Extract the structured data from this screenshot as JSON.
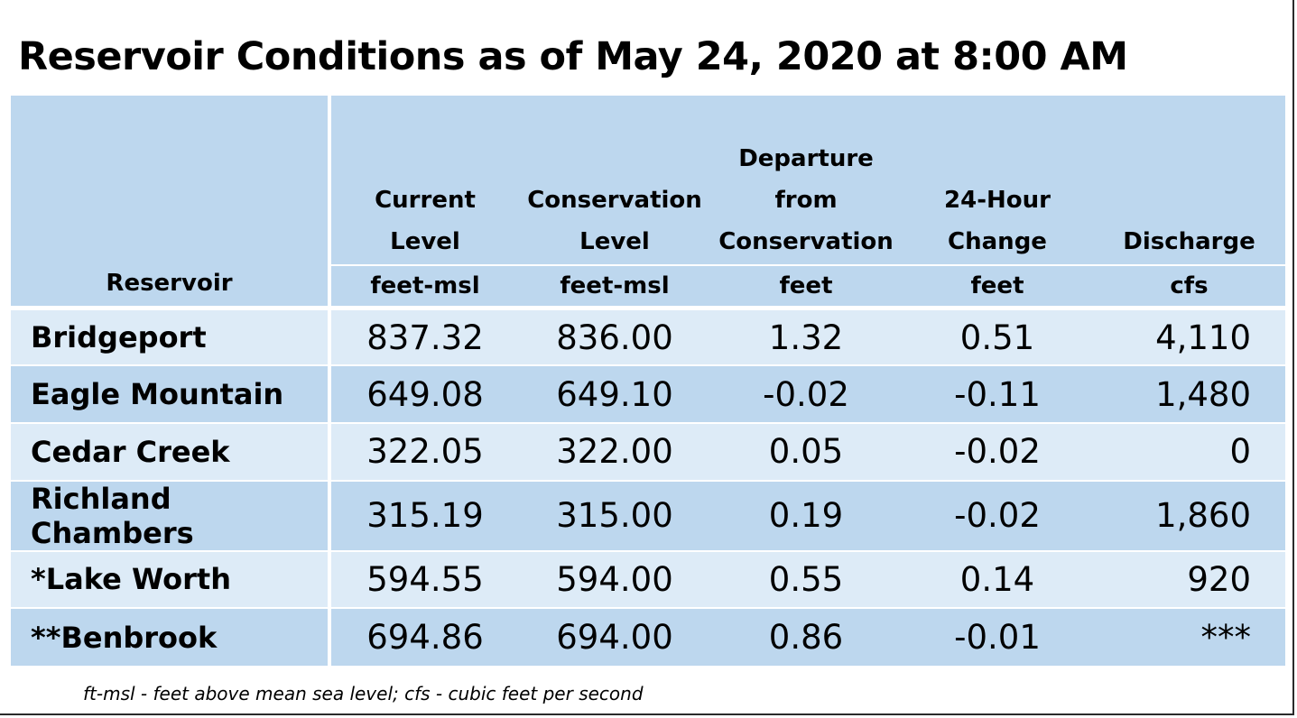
{
  "title": "Reservoir Conditions as of May 24, 2020 at 8:00 AM",
  "columns": [
    {
      "label_lines": [
        ""
      ],
      "unit": "Reservoir"
    },
    {
      "label_lines": [
        "Current",
        "Level"
      ],
      "unit": "feet-msl"
    },
    {
      "label_lines": [
        "Conservation",
        "Level"
      ],
      "unit": "feet-msl"
    },
    {
      "label_lines": [
        "Departure",
        "from",
        "Conservation"
      ],
      "unit": "feet"
    },
    {
      "label_lines": [
        "24-Hour",
        "Change"
      ],
      "unit": "feet"
    },
    {
      "label_lines": [
        "Discharge"
      ],
      "unit": "cfs"
    }
  ],
  "rows": [
    {
      "name": "Bridgeport",
      "current": "837.32",
      "conservation": "836.00",
      "departure": "1.32",
      "change": "0.51",
      "discharge": "4,110"
    },
    {
      "name": "Eagle Mountain",
      "current": "649.08",
      "conservation": "649.10",
      "departure": "-0.02",
      "change": "-0.11",
      "discharge": "1,480"
    },
    {
      "name": "Cedar Creek",
      "current": "322.05",
      "conservation": "322.00",
      "departure": "0.05",
      "change": "-0.02",
      "discharge": "0"
    },
    {
      "name": "Richland Chambers",
      "current": "315.19",
      "conservation": "315.00",
      "departure": "0.19",
      "change": "-0.02",
      "discharge": "1,860"
    },
    {
      "name": "*Lake Worth",
      "current": "594.55",
      "conservation": "594.00",
      "departure": "0.55",
      "change": "0.14",
      "discharge": "920"
    },
    {
      "name": "**Benbrook",
      "current": "694.86",
      "conservation": "694.00",
      "departure": "0.86",
      "change": "-0.01",
      "discharge": "***"
    }
  ],
  "footnote": "ft-msl - feet above mean sea level; cfs - cubic feet per second",
  "colors": {
    "header_bg": "#bdd7ee",
    "row_light": "#ddebf7",
    "row_dark": "#bdd7ee"
  }
}
